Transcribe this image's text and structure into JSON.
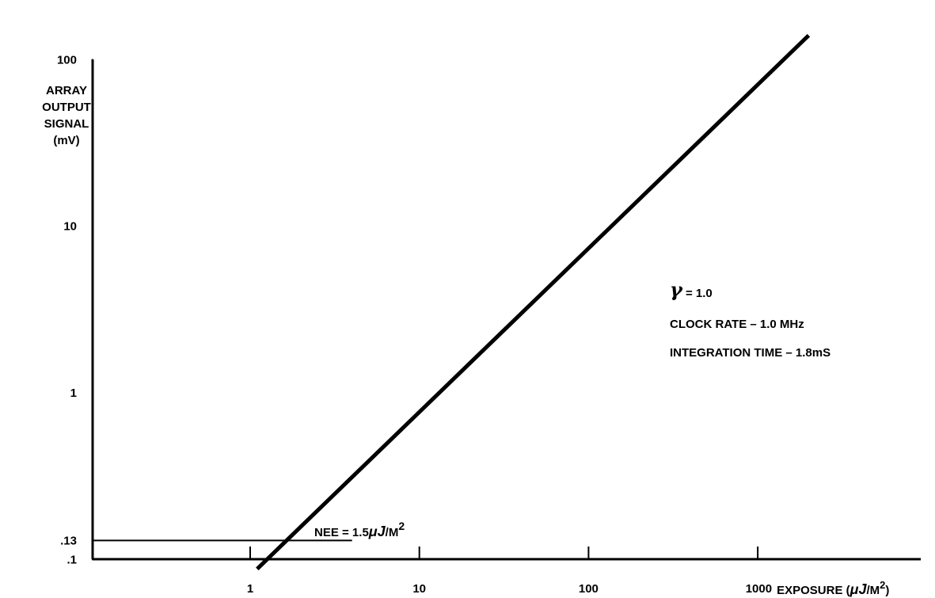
{
  "chart_data": {
    "type": "line",
    "x_scale": "log",
    "y_scale": "log",
    "xlim": [
      0.1,
      5000
    ],
    "ylim": [
      0.1,
      100
    ],
    "series": [
      {
        "x": [
          1.1,
          2000
        ],
        "y": [
          0.1,
          140
        ]
      }
    ],
    "x_ticks": [
      {
        "value": 1,
        "label": "1"
      },
      {
        "value": 10,
        "label": "10"
      },
      {
        "value": 100,
        "label": "100"
      },
      {
        "value": 1000,
        "label": "1000"
      }
    ],
    "y_ticks": [
      {
        "value": 0.1,
        "label": ".1"
      },
      {
        "value": 0.13,
        "label": ".13"
      },
      {
        "value": 1,
        "label": "1"
      },
      {
        "value": 10,
        "label": "10"
      },
      {
        "value": 100,
        "label": "100"
      }
    ],
    "xlabel": "EXPOSURE (μJ/M²)",
    "xlabel_prefix": "EXPOSURE (",
    "xlabel_unit": "μJ",
    "xlabel_suffix": "/M",
    "xlabel_sup": "2",
    "xlabel_close": ")",
    "ylabel_lines": [
      "ARRAY",
      "OUTPUT",
      "SIGNAL",
      "(mV)"
    ],
    "reference_line": {
      "y": 0.13,
      "x_end": 4
    },
    "annotations": {
      "nee_prefix": "NEE = 1.5",
      "nee_unit": "μJ",
      "nee_suffix": "/M",
      "nee_sup": "2",
      "gamma_symbol": "γ",
      "gamma_value": "= 1.0",
      "clock_rate": "CLOCK RATE – 1.0 MHz",
      "integration_time": "INTEGRATION TIME –  1.8mS"
    },
    "grid": false,
    "legend": "none"
  }
}
